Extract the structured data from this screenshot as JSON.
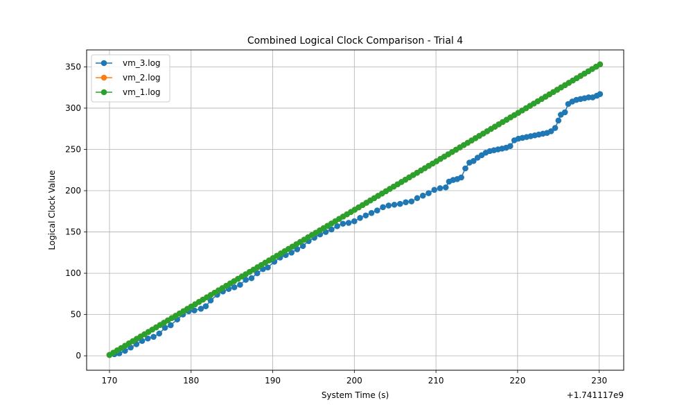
{
  "chart_data": {
    "type": "line",
    "title": "Combined Logical Clock Comparison - Trial 4",
    "xlabel": "System Time (s)",
    "ylabel": "Logical Clock Value",
    "x_offset_label": "+1.741117e9",
    "xlim": [
      167.2,
      233.0
    ],
    "ylim": [
      -17.5,
      370.5
    ],
    "x_ticks": [
      170,
      180,
      190,
      200,
      210,
      220,
      230
    ],
    "y_ticks": [
      0,
      50,
      100,
      150,
      200,
      250,
      300,
      350
    ],
    "grid": true,
    "legend_position": "top-left",
    "marker": "circle",
    "series": [
      {
        "name": "vm_3.log",
        "color": "#1f77b4",
        "points": [
          [
            170.0,
            1
          ],
          [
            170.6,
            2
          ],
          [
            171.2,
            3
          ],
          [
            171.9,
            6
          ],
          [
            172.6,
            10
          ],
          [
            173.3,
            14
          ],
          [
            174.0,
            18
          ],
          [
            174.7,
            21
          ],
          [
            175.4,
            23
          ],
          [
            176.1,
            27
          ],
          [
            176.8,
            34
          ],
          [
            177.5,
            37
          ],
          [
            178.3,
            44
          ],
          [
            179.0,
            50
          ],
          [
            179.7,
            54
          ],
          [
            180.4,
            55
          ],
          [
            181.2,
            57
          ],
          [
            181.8,
            60
          ],
          [
            182.4,
            67
          ],
          [
            183.2,
            74
          ],
          [
            183.9,
            78
          ],
          [
            184.6,
            81
          ],
          [
            185.3,
            83
          ],
          [
            186.0,
            86
          ],
          [
            186.7,
            92
          ],
          [
            187.4,
            94
          ],
          [
            188.1,
            100
          ],
          [
            188.8,
            105
          ],
          [
            189.4,
            107
          ],
          [
            190.2,
            114
          ],
          [
            190.9,
            119
          ],
          [
            191.6,
            122
          ],
          [
            192.3,
            125
          ],
          [
            193.0,
            129
          ],
          [
            193.7,
            133
          ],
          [
            194.4,
            139
          ],
          [
            195.1,
            143
          ],
          [
            195.8,
            147
          ],
          [
            196.5,
            150
          ],
          [
            197.2,
            153
          ],
          [
            197.9,
            157
          ],
          [
            198.6,
            160
          ],
          [
            199.3,
            161
          ],
          [
            200.0,
            163
          ],
          [
            200.7,
            167
          ],
          [
            201.4,
            170
          ],
          [
            202.1,
            173
          ],
          [
            202.8,
            176
          ],
          [
            203.5,
            180
          ],
          [
            204.2,
            182
          ],
          [
            204.9,
            183
          ],
          [
            205.6,
            184
          ],
          [
            206.3,
            186
          ],
          [
            207.0,
            187
          ],
          [
            207.7,
            191
          ],
          [
            208.4,
            194
          ],
          [
            209.1,
            197
          ],
          [
            209.8,
            201
          ],
          [
            210.5,
            203
          ],
          [
            211.2,
            204
          ],
          [
            211.6,
            211
          ],
          [
            212.1,
            213
          ],
          [
            212.6,
            214
          ],
          [
            213.1,
            216
          ],
          [
            213.6,
            227
          ],
          [
            214.1,
            234
          ],
          [
            214.6,
            236
          ],
          [
            215.1,
            240
          ],
          [
            215.6,
            243
          ],
          [
            216.1,
            246
          ],
          [
            216.6,
            248
          ],
          [
            217.1,
            249
          ],
          [
            217.6,
            250
          ],
          [
            218.1,
            251
          ],
          [
            218.6,
            252
          ],
          [
            219.1,
            254
          ],
          [
            219.6,
            261
          ],
          [
            220.1,
            263
          ],
          [
            220.6,
            264
          ],
          [
            221.1,
            265
          ],
          [
            221.6,
            266
          ],
          [
            222.1,
            267
          ],
          [
            222.6,
            268
          ],
          [
            223.1,
            269
          ],
          [
            223.6,
            270
          ],
          [
            224.1,
            272
          ],
          [
            224.6,
            276
          ],
          [
            225.0,
            285
          ],
          [
            225.3,
            292
          ],
          [
            225.8,
            295
          ],
          [
            226.2,
            305
          ],
          [
            226.7,
            308
          ],
          [
            227.2,
            310
          ],
          [
            227.7,
            311
          ],
          [
            228.2,
            312
          ],
          [
            228.7,
            313
          ],
          [
            229.2,
            313
          ],
          [
            229.7,
            315
          ],
          [
            230.1,
            317
          ]
        ]
      },
      {
        "name": "vm_2.log",
        "color": "#ff7f0e",
        "points": [
          [
            170.0,
            1
          ],
          [
            230.1,
            353
          ]
        ]
      },
      {
        "name": "vm_1.log",
        "color": "#2ca02c",
        "points": [
          [
            170.0,
            1
          ],
          [
            230.1,
            353
          ]
        ]
      }
    ]
  }
}
